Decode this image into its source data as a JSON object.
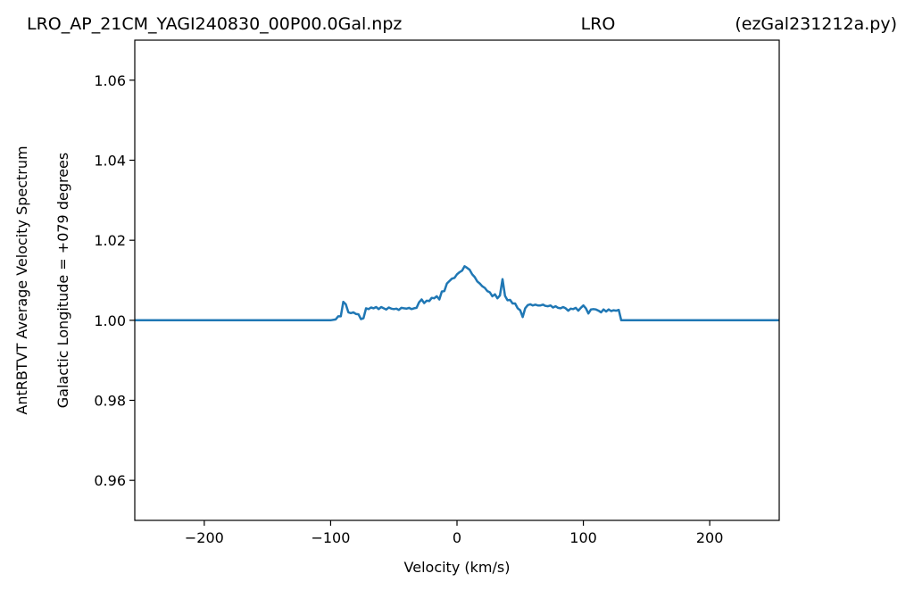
{
  "chart_data": {
    "type": "line",
    "title": {
      "left": "LRO_AP_21CM_YAGI240830_00P00.0Gal.npz",
      "center": "LRO",
      "right": "(ezGal231212a.py)"
    },
    "xlabel": "Velocity (km/s)",
    "ylabel_line1": "AntRBTVT Average Velocity Spectrum",
    "ylabel_line2": "Galactic Longitude = +079 degrees",
    "xlim": [
      -255,
      255
    ],
    "ylim": [
      0.95,
      1.07
    ],
    "xticks": [
      -200,
      -100,
      0,
      100,
      200
    ],
    "xtick_labels": [
      "−200",
      "−100",
      "0",
      "100",
      "200"
    ],
    "yticks": [
      0.96,
      0.98,
      1.0,
      1.02,
      1.04,
      1.06
    ],
    "ytick_labels": [
      "0.96",
      "0.98",
      "1.00",
      "1.02",
      "1.04",
      "1.06"
    ],
    "grid": false,
    "series": [
      {
        "color": "#1f77b4",
        "x": [
          -255,
          -100,
          -96,
          -94,
          -92,
          -90,
          -88,
          -86,
          -84,
          -82,
          -80,
          -78,
          -76,
          -74,
          -72,
          -70,
          -68,
          -66,
          -64,
          -62,
          -60,
          -58,
          -56,
          -54,
          -52,
          -50,
          -48,
          -46,
          -44,
          -42,
          -40,
          -38,
          -36,
          -34,
          -32,
          -30,
          -28,
          -26,
          -24,
          -22,
          -20,
          -18,
          -16,
          -14,
          -12,
          -10,
          -8,
          -6,
          -4,
          -2,
          0,
          2,
          4,
          6,
          8,
          10,
          12,
          14,
          16,
          18,
          20,
          22,
          24,
          26,
          28,
          30,
          32,
          34,
          36,
          38,
          40,
          42,
          44,
          46,
          48,
          50,
          52,
          54,
          56,
          58,
          60,
          62,
          64,
          66,
          68,
          70,
          72,
          74,
          76,
          78,
          80,
          82,
          84,
          86,
          88,
          90,
          92,
          94,
          96,
          98,
          100,
          102,
          104,
          106,
          108,
          110,
          112,
          114,
          116,
          118,
          120,
          122,
          124,
          126,
          128,
          130,
          255
        ],
        "y": [
          1.0,
          1.0,
          1.0002,
          1.001,
          1.001,
          1.0046,
          1.004,
          1.002,
          1.0018,
          1.002,
          1.0016,
          1.0015,
          1.0003,
          1.0005,
          1.003,
          1.0028,
          1.0032,
          1.003,
          1.0033,
          1.0028,
          1.0033,
          1.003,
          1.0027,
          1.0032,
          1.0029,
          1.0028,
          1.0029,
          1.0026,
          1.0031,
          1.003,
          1.0029,
          1.0031,
          1.0028,
          1.003,
          1.0031,
          1.0045,
          1.0052,
          1.0043,
          1.0049,
          1.0048,
          1.0056,
          1.0055,
          1.006,
          1.0052,
          1.0072,
          1.0073,
          1.0092,
          1.0098,
          1.0104,
          1.0106,
          1.0115,
          1.012,
          1.0124,
          1.0135,
          1.0131,
          1.0126,
          1.0115,
          1.0108,
          1.0097,
          1.0092,
          1.0085,
          1.0081,
          1.0073,
          1.007,
          1.006,
          1.0065,
          1.0055,
          1.0062,
          1.0103,
          1.0061,
          1.005,
          1.0051,
          1.0042,
          1.0042,
          1.003,
          1.0025,
          1.0008,
          1.003,
          1.0038,
          1.004,
          1.0037,
          1.0039,
          1.0037,
          1.0037,
          1.0039,
          1.0036,
          1.0035,
          1.0037,
          1.0032,
          1.0035,
          1.0031,
          1.003,
          1.0033,
          1.003,
          1.0024,
          1.0029,
          1.0028,
          1.0031,
          1.0024,
          1.0031,
          1.0037,
          1.003,
          1.0017,
          1.0027,
          1.0028,
          1.0027,
          1.0024,
          1.002,
          1.0027,
          1.0022,
          1.0027,
          1.0023,
          1.0025,
          1.0024,
          1.0026,
          1.0,
          1.0
        ]
      }
    ]
  }
}
